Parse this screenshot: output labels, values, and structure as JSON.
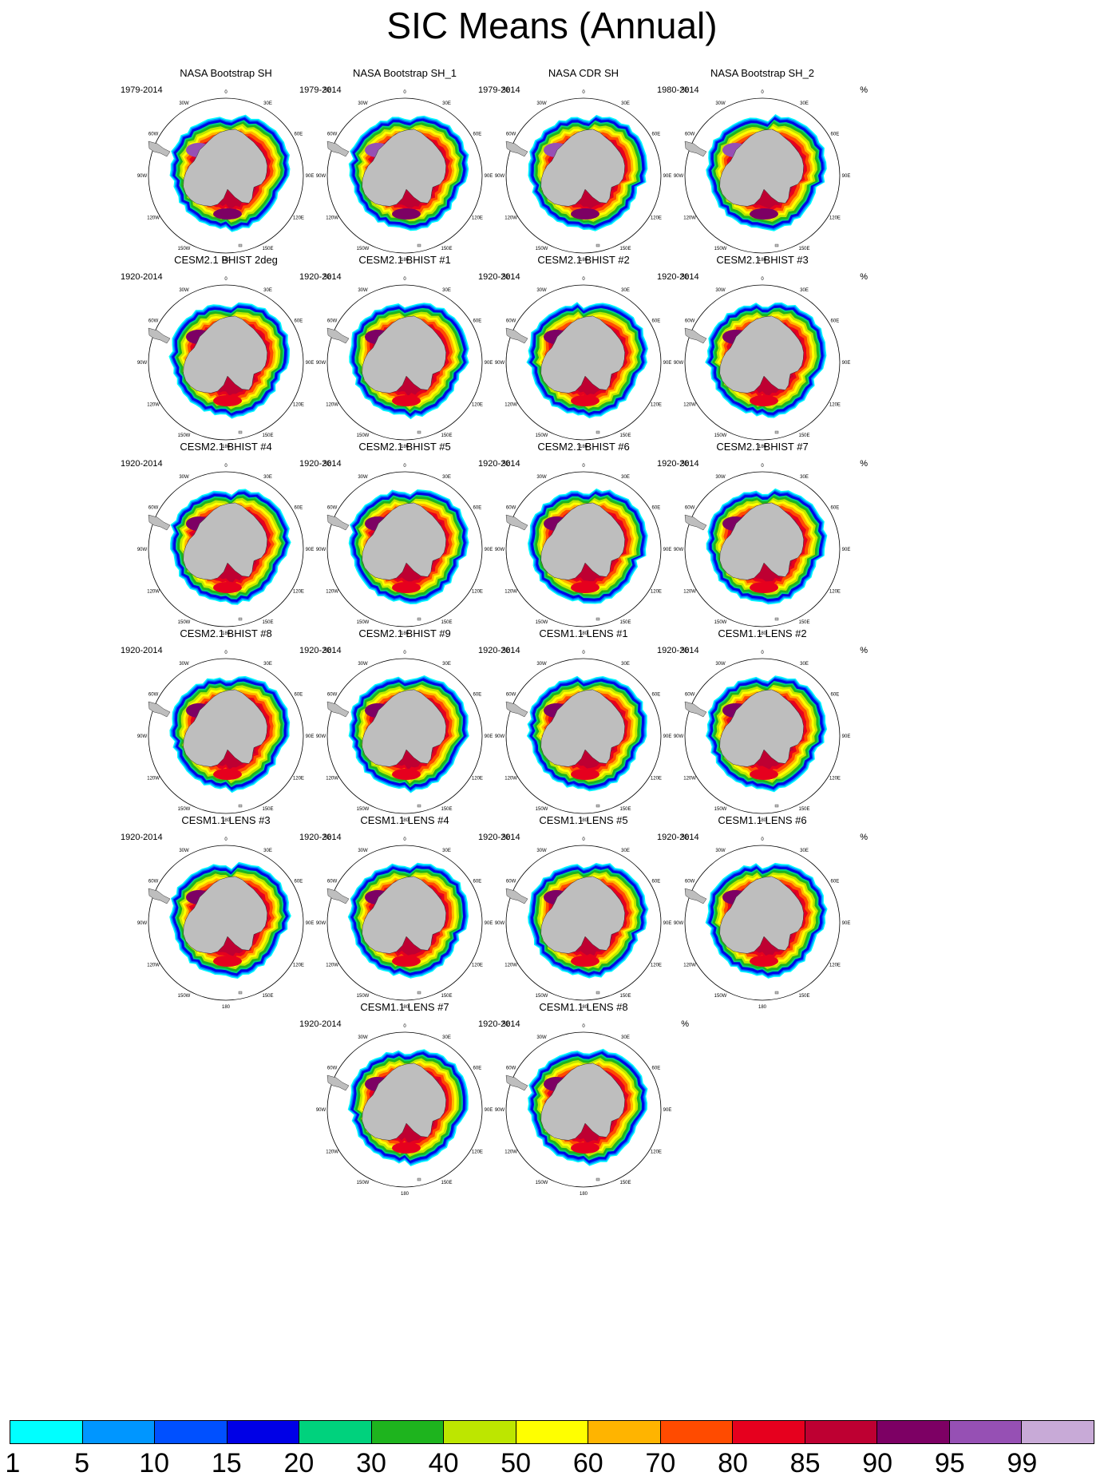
{
  "title": "SIC Means (Annual)",
  "units": "%",
  "longitude_labels": [
    "0",
    "30E",
    "60E",
    "90E",
    "120E",
    "150E",
    "180",
    "150W",
    "120W",
    "90W",
    "60W",
    "30W"
  ],
  "panels": [
    {
      "title": "NASA Bootstrap SH",
      "years": "1979-2014"
    },
    {
      "title": "NASA Bootstrap SH_1",
      "years": "1979-2014"
    },
    {
      "title": "NASA CDR SH",
      "years": "1979-2014"
    },
    {
      "title": "NASA Bootstrap SH_2",
      "years": "1980-2014"
    },
    {
      "title": "CESM2.1 BHIST 2deg",
      "years": "1920-2014"
    },
    {
      "title": "CESM2.1 BHIST #1",
      "years": "1920-2014"
    },
    {
      "title": "CESM2.1 BHIST #2",
      "years": "1920-2014"
    },
    {
      "title": "CESM2.1 BHIST #3",
      "years": "1920-2014"
    },
    {
      "title": "CESM2.1 BHIST #4",
      "years": "1920-2014"
    },
    {
      "title": "CESM2.1 BHIST #5",
      "years": "1920-2014"
    },
    {
      "title": "CESM2.1 BHIST #6",
      "years": "1920-2014"
    },
    {
      "title": "CESM2.1 BHIST #7",
      "years": "1920-2014"
    },
    {
      "title": "CESM2.1 BHIST #8",
      "years": "1920-2014"
    },
    {
      "title": "CESM2.1 BHIST #9",
      "years": "1920-2014"
    },
    {
      "title": "CESM1.1 LENS #1",
      "years": "1920-2014"
    },
    {
      "title": "CESM1.1 LENS #2",
      "years": "1920-2014"
    },
    {
      "title": "CESM1.1 LENS #3",
      "years": "1920-2014"
    },
    {
      "title": "CESM1.1 LENS #4",
      "years": "1920-2014"
    },
    {
      "title": "CESM1.1 LENS #5",
      "years": "1920-2014"
    },
    {
      "title": "CESM1.1 LENS #6",
      "years": "1920-2014"
    },
    {
      "title": "CESM1.1 LENS #7",
      "years": "1920-2014"
    },
    {
      "title": "CESM1.1 LENS #8",
      "years": "1920-2014"
    }
  ],
  "colorbar": {
    "labels": [
      "1",
      "5",
      "10",
      "15",
      "20",
      "30",
      "40",
      "50",
      "60",
      "70",
      "80",
      "85",
      "90",
      "95",
      "99"
    ],
    "colors": [
      "#00ffff",
      "#0096ff",
      "#0050ff",
      "#0000e6",
      "#00d27d",
      "#1eb41e",
      "#bde600",
      "#ffff00",
      "#ffb400",
      "#ff4b00",
      "#e6001e",
      "#be0032",
      "#7d0064",
      "#9650b4",
      "#c8aad7"
    ]
  },
  "land_color": "#bebebe"
}
